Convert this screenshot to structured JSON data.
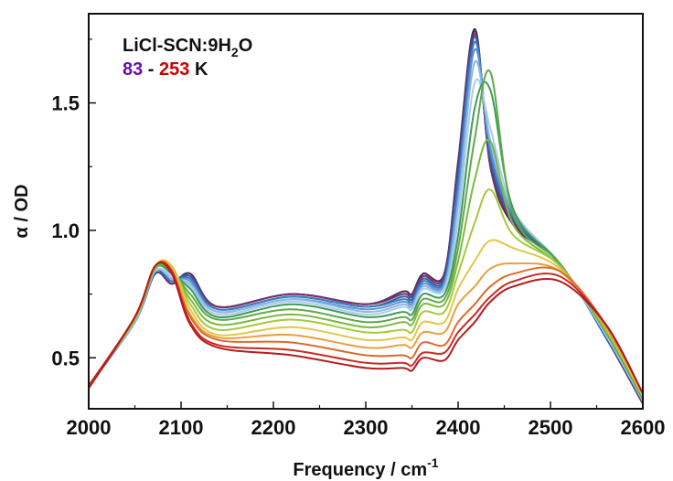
{
  "chart_data": {
    "type": "line",
    "title": "",
    "xlabel": "Frequency / cm",
    "xlabel_superscript": "-1",
    "ylabel": "α / OD",
    "xlim": [
      2000,
      2600
    ],
    "ylim": [
      0.3,
      1.85
    ],
    "xticks": [
      2000,
      2100,
      2200,
      2300,
      2400,
      2500,
      2600
    ],
    "yticks": [
      0.5,
      1.0,
      1.5
    ],
    "ytick_labels": [
      "0.5",
      "1.0",
      "1.5"
    ],
    "grid": false,
    "legend": {
      "placement": "top-left",
      "sample_prefix": "LiCl-SCN:9H",
      "sample_sub": "2",
      "sample_suffix": "O",
      "temp_low": "83",
      "separator": " - ",
      "temp_high": "253",
      "unit": " K",
      "temp_low_color": "#6a0dad",
      "temp_high_color": "#cc0000"
    },
    "colors": [
      "#2b2a55",
      "#5a2e5e",
      "#7a3366",
      "#2e5fa6",
      "#3f78c2",
      "#5d93d4",
      "#8bb7e2",
      "#a9cce8",
      "#3f9a5a",
      "#5ea84a",
      "#7db83e",
      "#a6c93a",
      "#e3c64a",
      "#e8a03f",
      "#dc6a2d",
      "#c92a22",
      "#b31c1c"
    ],
    "anchors_x": [
      2000,
      2050,
      2072,
      2090,
      2110,
      2140,
      2220,
      2300,
      2340,
      2350,
      2362,
      2385,
      2400,
      2418,
      2435,
      2460,
      2510,
      2560,
      2600
    ],
    "series": [
      {
        "values": [
          0.39,
          0.64,
          0.83,
          0.79,
          0.83,
          0.7,
          0.75,
          0.71,
          0.76,
          0.75,
          0.83,
          0.83,
          1.27,
          1.79,
          1.25,
          1.02,
          0.87,
          0.58,
          0.32
        ]
      },
      {
        "values": [
          0.39,
          0.64,
          0.83,
          0.79,
          0.83,
          0.7,
          0.75,
          0.71,
          0.76,
          0.75,
          0.83,
          0.83,
          1.26,
          1.78,
          1.25,
          1.02,
          0.87,
          0.58,
          0.32
        ]
      },
      {
        "values": [
          0.39,
          0.64,
          0.83,
          0.79,
          0.82,
          0.7,
          0.75,
          0.71,
          0.75,
          0.74,
          0.82,
          0.82,
          1.24,
          1.77,
          1.26,
          1.03,
          0.87,
          0.58,
          0.32
        ]
      },
      {
        "values": [
          0.39,
          0.64,
          0.83,
          0.8,
          0.82,
          0.69,
          0.74,
          0.7,
          0.74,
          0.73,
          0.81,
          0.81,
          1.22,
          1.76,
          1.28,
          1.04,
          0.87,
          0.58,
          0.33
        ]
      },
      {
        "values": [
          0.39,
          0.64,
          0.84,
          0.8,
          0.81,
          0.69,
          0.74,
          0.7,
          0.73,
          0.72,
          0.8,
          0.8,
          1.18,
          1.74,
          1.3,
          1.05,
          0.87,
          0.59,
          0.33
        ]
      },
      {
        "values": [
          0.39,
          0.64,
          0.84,
          0.81,
          0.8,
          0.68,
          0.73,
          0.69,
          0.72,
          0.71,
          0.79,
          0.79,
          1.14,
          1.71,
          1.32,
          1.06,
          0.87,
          0.59,
          0.33
        ]
      },
      {
        "values": [
          0.39,
          0.64,
          0.84,
          0.81,
          0.79,
          0.68,
          0.73,
          0.68,
          0.71,
          0.7,
          0.78,
          0.78,
          1.1,
          1.66,
          1.35,
          1.07,
          0.87,
          0.59,
          0.33
        ]
      },
      {
        "values": [
          0.39,
          0.65,
          0.84,
          0.82,
          0.78,
          0.67,
          0.72,
          0.67,
          0.7,
          0.69,
          0.77,
          0.77,
          1.04,
          1.58,
          1.4,
          1.08,
          0.87,
          0.59,
          0.34
        ]
      },
      {
        "values": [
          0.39,
          0.65,
          0.85,
          0.83,
          0.77,
          0.66,
          0.71,
          0.66,
          0.68,
          0.67,
          0.75,
          0.75,
          0.98,
          1.48,
          1.55,
          1.08,
          0.87,
          0.6,
          0.34
        ]
      },
      {
        "values": [
          0.39,
          0.65,
          0.85,
          0.84,
          0.75,
          0.65,
          0.69,
          0.64,
          0.66,
          0.65,
          0.73,
          0.73,
          0.93,
          1.36,
          1.62,
          1.06,
          0.87,
          0.6,
          0.34
        ]
      },
      {
        "values": [
          0.39,
          0.65,
          0.85,
          0.85,
          0.73,
          0.63,
          0.67,
          0.62,
          0.64,
          0.63,
          0.71,
          0.71,
          0.88,
          1.2,
          1.35,
          1.02,
          0.86,
          0.61,
          0.35
        ]
      },
      {
        "values": [
          0.39,
          0.65,
          0.86,
          0.86,
          0.71,
          0.61,
          0.65,
          0.6,
          0.61,
          0.6,
          0.68,
          0.68,
          0.83,
          1.03,
          1.16,
          0.98,
          0.86,
          0.61,
          0.35
        ]
      },
      {
        "values": [
          0.39,
          0.66,
          0.86,
          0.86,
          0.69,
          0.59,
          0.62,
          0.57,
          0.58,
          0.57,
          0.64,
          0.64,
          0.77,
          0.88,
          0.96,
          0.93,
          0.85,
          0.62,
          0.35
        ]
      },
      {
        "values": [
          0.39,
          0.66,
          0.86,
          0.85,
          0.67,
          0.58,
          0.59,
          0.54,
          0.55,
          0.54,
          0.6,
          0.6,
          0.71,
          0.78,
          0.85,
          0.87,
          0.84,
          0.62,
          0.36
        ]
      },
      {
        "values": [
          0.39,
          0.66,
          0.86,
          0.84,
          0.66,
          0.57,
          0.56,
          0.51,
          0.51,
          0.5,
          0.56,
          0.55,
          0.64,
          0.71,
          0.78,
          0.83,
          0.84,
          0.63,
          0.36
        ]
      },
      {
        "values": [
          0.39,
          0.66,
          0.86,
          0.84,
          0.64,
          0.55,
          0.53,
          0.48,
          0.48,
          0.47,
          0.52,
          0.52,
          0.6,
          0.67,
          0.74,
          0.8,
          0.82,
          0.63,
          0.36
        ]
      },
      {
        "values": [
          0.38,
          0.66,
          0.86,
          0.83,
          0.63,
          0.54,
          0.51,
          0.46,
          0.46,
          0.45,
          0.5,
          0.49,
          0.57,
          0.64,
          0.72,
          0.78,
          0.8,
          0.63,
          0.36
        ]
      }
    ]
  }
}
